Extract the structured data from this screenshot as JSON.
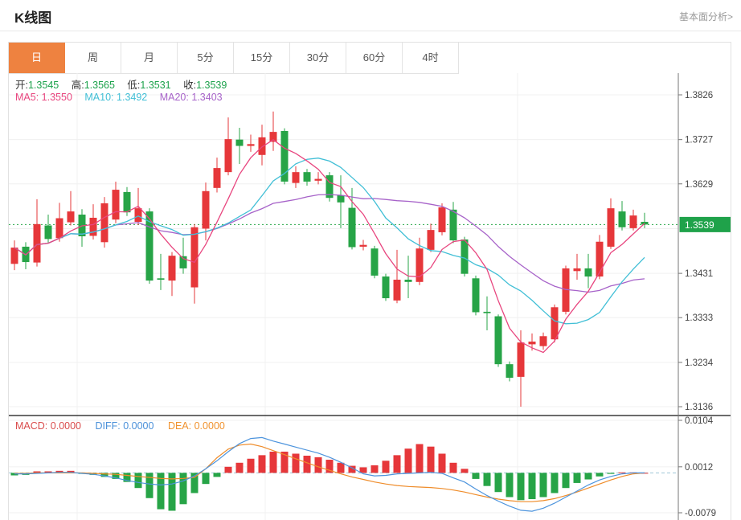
{
  "header": {
    "title": "K线图",
    "link": "基本面分析>"
  },
  "tabs": {
    "items": [
      "日",
      "周",
      "月",
      "5分",
      "15分",
      "30分",
      "60分",
      "4时"
    ],
    "active_index": 0
  },
  "legend": {
    "open_label": "开:",
    "open": "1.3545",
    "high_label": "高:",
    "high": "1.3565",
    "low_label": "低:",
    "low": "1.3531",
    "close_label": "收:",
    "close": "1.3539",
    "ma5_label": "MA5:",
    "ma5": "1.3550",
    "ma10_label": "MA10:",
    "ma10": "1.3492",
    "ma20_label": "MA20:",
    "ma20": "1.3403"
  },
  "macd_legend": {
    "macd_label": "MACD:",
    "macd": "0.0000",
    "diff_label": "DIFF:",
    "diff": "0.0000",
    "dea_label": "DEA:",
    "dea": "0.0000"
  },
  "colors": {
    "up": "#e6373a",
    "down": "#27a447",
    "ma5": "#e8467f",
    "ma10": "#41bfd6",
    "ma20": "#a763c9",
    "diff_line": "#4d94dd",
    "dea_line": "#ef8c2a",
    "price_badge": "#1fa24a",
    "price_dotted": "#2aa84a",
    "tab_active": "#ee8240",
    "grid": "#f0f0f0",
    "axis_line": "#777",
    "separator": "#3a3a3a",
    "macd_zero": "#9fc6d8"
  },
  "chart_data": {
    "type": "candlestick+macd",
    "title": "K线图",
    "legend_position": "top-left",
    "grid": true,
    "price_axis_ticks": [
      "1.3826",
      "1.3727",
      "1.3629",
      "1.3431",
      "1.3333",
      "1.3234",
      "1.3136"
    ],
    "price_axis_range": [
      1.3136,
      1.3826
    ],
    "current_price": "1.3539",
    "macd_axis_ticks": [
      "0.0104",
      "0.0012",
      "-0.0079"
    ],
    "macd_axis_range": [
      -0.0079,
      0.0104
    ],
    "ma_periods": [
      5,
      10,
      20
    ],
    "candles_ohlc": [
      [
        1.3452,
        1.3504,
        1.3438,
        1.3488
      ],
      [
        1.349,
        1.35,
        1.344,
        1.3456
      ],
      [
        1.3455,
        1.3595,
        1.3446,
        1.354
      ],
      [
        1.3537,
        1.3561,
        1.3497,
        1.3507
      ],
      [
        1.3509,
        1.3587,
        1.3501,
        1.3553
      ],
      [
        1.3544,
        1.3613,
        1.3537,
        1.3568
      ],
      [
        1.3561,
        1.3573,
        1.349,
        1.3513
      ],
      [
        1.3514,
        1.3584,
        1.3506,
        1.3554
      ],
      [
        1.35,
        1.36,
        1.3488,
        1.3586
      ],
      [
        1.355,
        1.3634,
        1.3542,
        1.3616
      ],
      [
        1.3611,
        1.3622,
        1.3558,
        1.3566
      ],
      [
        1.3545,
        1.362,
        1.3538,
        1.3575
      ],
      [
        1.3568,
        1.3575,
        1.3408,
        1.3415
      ],
      [
        1.342,
        1.3474,
        1.3394,
        1.3417
      ],
      [
        1.3415,
        1.3478,
        1.3381,
        1.347
      ],
      [
        1.3469,
        1.351,
        1.343,
        1.3442
      ],
      [
        1.34,
        1.354,
        1.3364,
        1.3533
      ],
      [
        1.353,
        1.3632,
        1.3504,
        1.3613
      ],
      [
        1.362,
        1.3687,
        1.361,
        1.3664
      ],
      [
        1.3655,
        1.3776,
        1.3648,
        1.3728
      ],
      [
        1.3727,
        1.3753,
        1.3673,
        1.3713
      ],
      [
        1.3713,
        1.3738,
        1.37,
        1.3717
      ],
      [
        1.3693,
        1.376,
        1.367,
        1.3732
      ],
      [
        1.3722,
        1.3789,
        1.3702,
        1.3744
      ],
      [
        1.3746,
        1.3752,
        1.3628,
        1.3634
      ],
      [
        1.3631,
        1.3668,
        1.362,
        1.3655
      ],
      [
        1.3655,
        1.3662,
        1.3625,
        1.3634
      ],
      [
        1.3636,
        1.3655,
        1.3628,
        1.364
      ],
      [
        1.3648,
        1.3655,
        1.359,
        1.3598
      ],
      [
        1.3604,
        1.3648,
        1.3531,
        1.3588
      ],
      [
        1.3576,
        1.362,
        1.3484,
        1.3489
      ],
      [
        1.349,
        1.3505,
        1.3482,
        1.3494
      ],
      [
        1.3486,
        1.3492,
        1.342,
        1.3426
      ],
      [
        1.3424,
        1.343,
        1.337,
        1.3376
      ],
      [
        1.3371,
        1.3483,
        1.3365,
        1.3417
      ],
      [
        1.3417,
        1.347,
        1.3376,
        1.3412
      ],
      [
        1.3412,
        1.351,
        1.3405,
        1.3486
      ],
      [
        1.3483,
        1.3541,
        1.3478,
        1.3527
      ],
      [
        1.3522,
        1.3586,
        1.3515,
        1.3577
      ],
      [
        1.3572,
        1.3589,
        1.3498,
        1.3504
      ],
      [
        1.3506,
        1.3512,
        1.3424,
        1.343
      ],
      [
        1.342,
        1.3426,
        1.3338,
        1.3345
      ],
      [
        1.3346,
        1.338,
        1.3305,
        1.3343
      ],
      [
        1.3336,
        1.334,
        1.3224,
        1.323
      ],
      [
        1.323,
        1.3236,
        1.3192,
        1.32
      ],
      [
        1.3202,
        1.3305,
        1.3136,
        1.3278
      ],
      [
        1.3274,
        1.3298,
        1.326,
        1.328
      ],
      [
        1.327,
        1.33,
        1.3262,
        1.3292
      ],
      [
        1.3285,
        1.3362,
        1.3278,
        1.3356
      ],
      [
        1.3346,
        1.3448,
        1.334,
        1.3442
      ],
      [
        1.3436,
        1.3474,
        1.3417,
        1.3442
      ],
      [
        1.3442,
        1.3474,
        1.3398,
        1.3424
      ],
      [
        1.3424,
        1.3516,
        1.3418,
        1.3501
      ],
      [
        1.349,
        1.3597,
        1.3485,
        1.3575
      ],
      [
        1.3568,
        1.3591,
        1.3526,
        1.3533
      ],
      [
        1.3531,
        1.3572,
        1.3526,
        1.3559
      ],
      [
        1.3545,
        1.3565,
        1.3531,
        1.3539
      ]
    ],
    "macd": {
      "histogram": [
        -0.0005,
        -0.0004,
        0.0003,
        0.0003,
        0.0004,
        0.0004,
        -0.0002,
        -0.0004,
        -0.0008,
        -0.0012,
        -0.0018,
        -0.003,
        -0.005,
        -0.0072,
        -0.0075,
        -0.0062,
        -0.004,
        -0.0022,
        -0.0008,
        0.0012,
        0.002,
        0.0028,
        0.0035,
        0.0042,
        0.0042,
        0.0038,
        0.0034,
        0.0031,
        0.0026,
        0.002,
        0.0014,
        0.0011,
        0.0015,
        0.0024,
        0.0035,
        0.0048,
        0.0057,
        0.0052,
        0.0038,
        0.002,
        0.0008,
        -0.0012,
        -0.0026,
        -0.0038,
        -0.0048,
        -0.0054,
        -0.0052,
        -0.0048,
        -0.004,
        -0.003,
        -0.002,
        -0.0013,
        -0.0007,
        -0.0002,
        0.0001,
        0.0001,
        0.0
      ],
      "diff": [
        -0.0002,
        -0.0002,
        -0.0001,
        0.0,
        0.0001,
        0.0001,
        -0.0001,
        -0.0003,
        -0.0006,
        -0.001,
        -0.0015,
        -0.0019,
        -0.0022,
        -0.0024,
        -0.0022,
        -0.0016,
        -0.0006,
        0.0008,
        0.0024,
        0.0042,
        0.0058,
        0.0068,
        0.007,
        0.0063,
        0.0057,
        0.0051,
        0.0045,
        0.0039,
        0.0031,
        0.0021,
        0.001,
        -0.0002,
        -0.0006,
        -0.0005,
        -0.0002,
        -0.0001,
        0.0,
        0.0001,
        -0.0001,
        -0.001,
        -0.0018,
        -0.0032,
        -0.0045,
        -0.0056,
        -0.0066,
        -0.0074,
        -0.0076,
        -0.007,
        -0.006,
        -0.0048,
        -0.0036,
        -0.0024,
        -0.0014,
        -0.0007,
        -0.0002,
        0.0,
        0.0
      ],
      "dea": [
        -0.0001,
        -0.0001,
        0.0,
        0.0,
        0.0,
        0.0,
        0.0,
        -0.0001,
        -0.0002,
        -0.0003,
        -0.0005,
        -0.0007,
        -0.0009,
        -0.0011,
        -0.0012,
        -0.0011,
        -0.0009,
        0.0008,
        0.003,
        0.0047,
        0.0055,
        0.0057,
        0.0052,
        0.0044,
        0.0036,
        0.0028,
        0.002,
        0.0012,
        0.0005,
        -0.0002,
        -0.0008,
        -0.0013,
        -0.0018,
        -0.0022,
        -0.0025,
        -0.0027,
        -0.0028,
        -0.0029,
        -0.0031,
        -0.0034,
        -0.0038,
        -0.0043,
        -0.0048,
        -0.0052,
        -0.0055,
        -0.0057,
        -0.0057,
        -0.0055,
        -0.0051,
        -0.0045,
        -0.0038,
        -0.003,
        -0.0022,
        -0.0014,
        -0.0007,
        -0.0002,
        0.0
      ]
    }
  }
}
